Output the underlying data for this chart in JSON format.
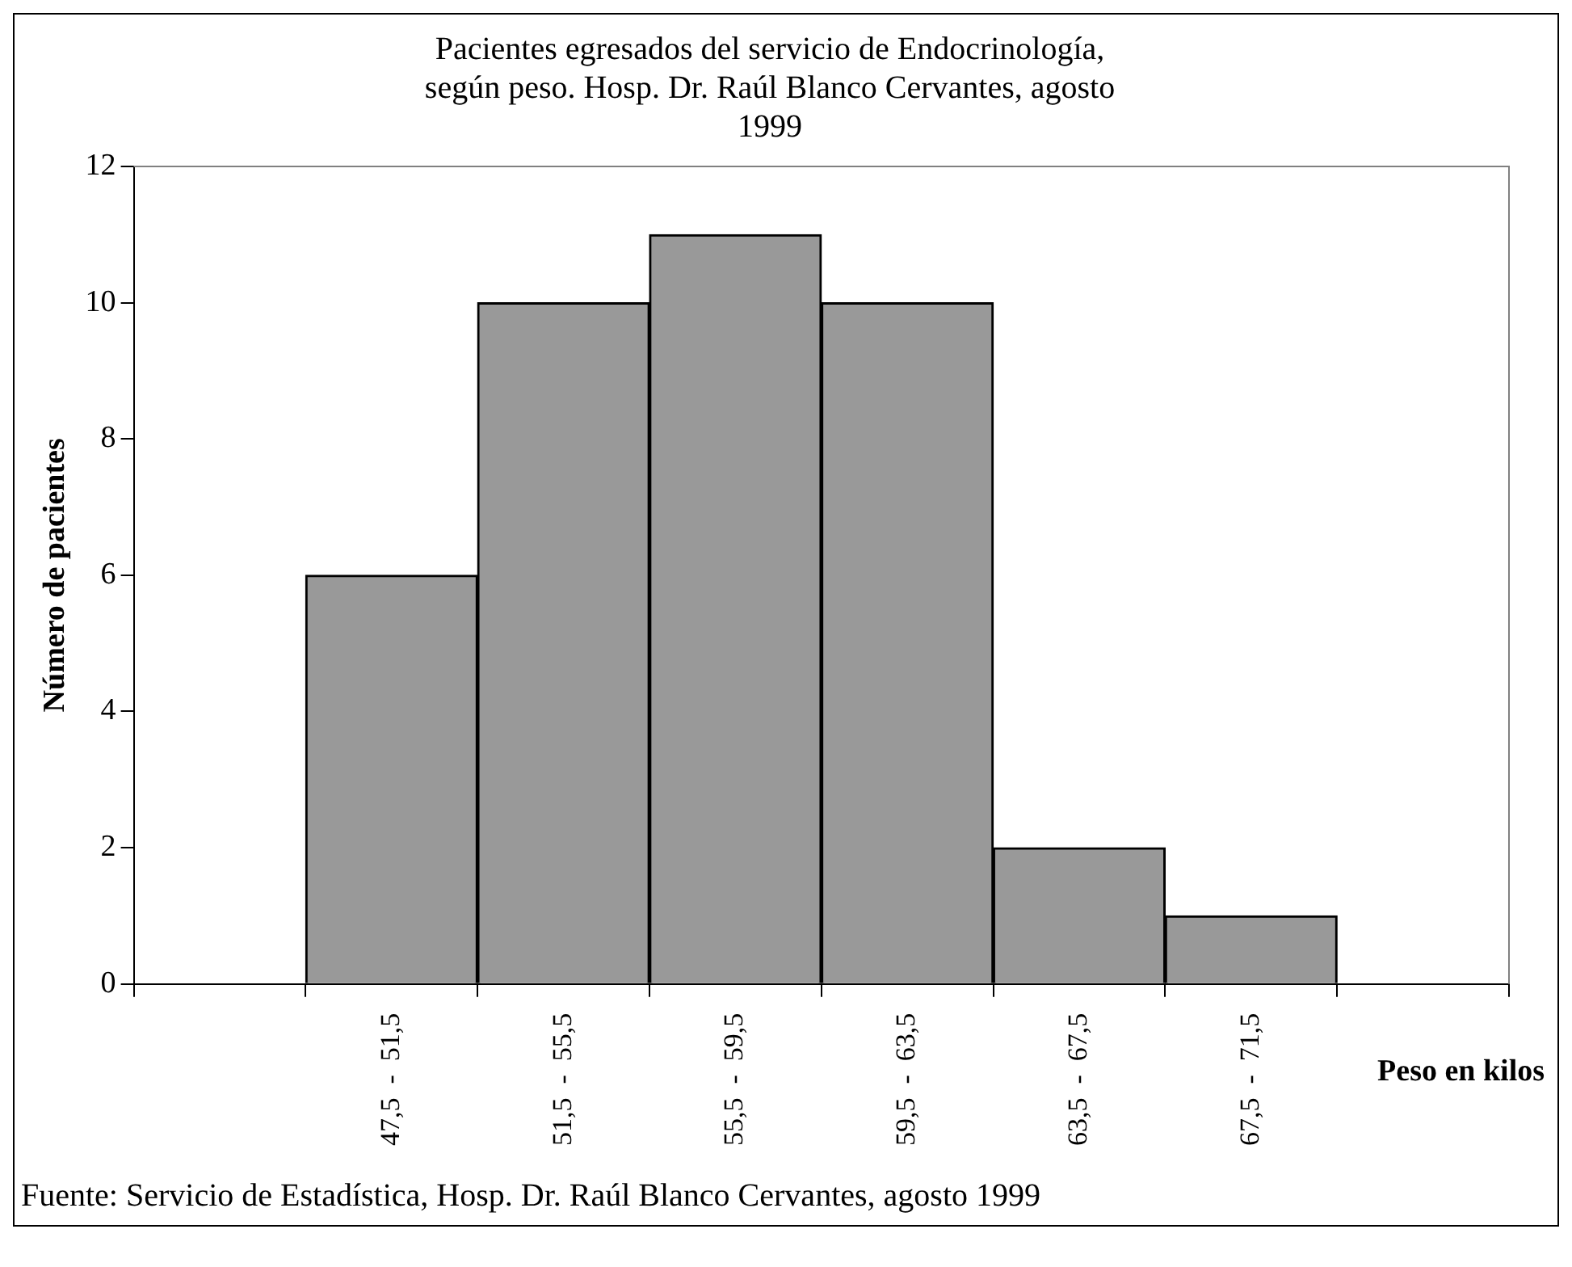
{
  "chart_data": {
    "type": "bar",
    "title": "Pacientes egresados del servicio de Endocrinología, según peso. Hosp. Dr. Raúl Blanco Cervantes, agosto 1999",
    "categories": [
      null,
      "47,5  -  51,5",
      "51,5  -  55,5",
      "55,5  -  59,5",
      "59,5  -  63,5",
      "63,5  -  67,5",
      "67,5  -  71,5",
      null
    ],
    "values": [
      null,
      6,
      10,
      11,
      10,
      2,
      1,
      null
    ],
    "color": "#999999",
    "xlabel": "Peso en kilos",
    "ylabel": "Número de pacientes",
    "ylim": [
      0,
      12
    ],
    "yticks": [
      0,
      2,
      4,
      6,
      8,
      10,
      12
    ],
    "grid": false,
    "legend": false,
    "annotations": [
      "Fuente: Servicio de Estadística, Hosp. Dr. Raúl Blanco Cervantes, agosto 1999"
    ]
  }
}
